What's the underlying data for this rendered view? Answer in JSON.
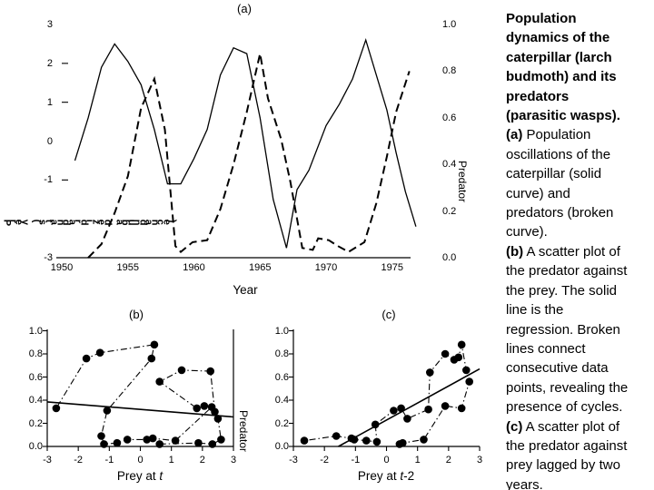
{
  "caption": {
    "lines": [
      {
        "b": "Population"
      },
      {
        "b": "dynamics of the"
      },
      {
        "b": "caterpillar (larch"
      },
      {
        "b": "budmoth) and its"
      },
      {
        "b": "predators"
      },
      {
        "b": "(parasitic wasps)."
      },
      {
        "b": "(a)",
        "t": " Population"
      },
      {
        "t": "oscillations of the"
      },
      {
        "t": "caterpillar (solid"
      },
      {
        "t": "curve) and"
      },
      {
        "t": "predators (broken"
      },
      {
        "t": "curve)."
      },
      {
        "b": "(b)",
        "t": " A scatter plot of"
      },
      {
        "t": "the predator against"
      },
      {
        "t": "the prey. The solid"
      },
      {
        "t": "line is the"
      },
      {
        "t": "regression. Broken"
      },
      {
        "t": "lines connect"
      },
      {
        "t": "consecutive data"
      },
      {
        "t": "points, revealing the"
      },
      {
        "t": "presence of cycles."
      },
      {
        "b": "(c)",
        "t": " A scatter plot of"
      },
      {
        "t": "the predator against"
      },
      {
        "t": "prey lagged by two"
      },
      {
        "t": "years."
      }
    ]
  },
  "chart_data": [
    {
      "id": "a",
      "type": "line",
      "title": "(a)",
      "xlabel": "Year",
      "right_axis_label": "Predator",
      "left_axis_label": "Prey (standardized abundance)",
      "x_ticks": {
        "values": [
          1950,
          1955,
          1960,
          1965,
          1970,
          1975
        ],
        "labels": [
          "1950",
          "1955",
          "1960",
          "1965",
          "1970",
          "1975"
        ]
      },
      "left_ticks": {
        "values": [
          3,
          2,
          1,
          0,
          -1,
          -3
        ],
        "labels": [
          "3",
          "2",
          "1",
          "0",
          "-1",
          "-3"
        ],
        "dash_values": [
          2,
          1,
          -1
        ]
      },
      "right_ticks": {
        "values": [
          1.0,
          0.8,
          0.6,
          0.4,
          0.2,
          0.0
        ],
        "labels": [
          "1.0",
          "0.8",
          "0.6",
          "0.4",
          "0.2",
          "0.0"
        ]
      },
      "xlim": [
        1949.6,
        1977.4
      ],
      "ylim_left": [
        -3,
        3
      ],
      "ylim_right": [
        0,
        1
      ],
      "grid": false,
      "series": [
        {
          "name": "caterpillar-prey-solid-curve",
          "style": "solid",
          "points": [
            [
              1951,
              -0.5
            ],
            [
              1952,
              0.6
            ],
            [
              1953,
              1.9
            ],
            [
              1954,
              2.5
            ],
            [
              1955,
              2.05
            ],
            [
              1956,
              1.45
            ],
            [
              1957,
              0.3
            ],
            [
              1958,
              -1.1
            ],
            [
              1959,
              -1.1
            ],
            [
              1960,
              -0.45
            ],
            [
              1961,
              0.3
            ],
            [
              1962,
              1.7
            ],
            [
              1963,
              2.4
            ],
            [
              1964,
              2.25
            ],
            [
              1965,
              0.6
            ],
            [
              1966,
              -1.5
            ],
            [
              1967,
              -2.75
            ],
            [
              1967.8,
              -1.25
            ],
            [
              1968.7,
              -0.75
            ],
            [
              1970,
              0.4
            ],
            [
              1971,
              0.95
            ],
            [
              1972,
              1.6
            ],
            [
              1973,
              2.6
            ],
            [
              1973.8,
              1.7
            ],
            [
              1974.6,
              0.8
            ],
            [
              1975.3,
              -0.3
            ],
            [
              1976,
              -1.3
            ],
            [
              1976.8,
              -2.2
            ]
          ]
        },
        {
          "name": "predators-broken-curve",
          "style": "dashed",
          "points": [
            [
              1952,
              -3.0
            ],
            [
              1953,
              -2.65
            ],
            [
              1954,
              -1.85
            ],
            [
              1955,
              -0.9
            ],
            [
              1956,
              0.85
            ],
            [
              1957,
              1.6
            ],
            [
              1957.8,
              0.3
            ],
            [
              1958.6,
              -2.7
            ],
            [
              1959,
              -2.85
            ],
            [
              1959.9,
              -2.6
            ],
            [
              1961,
              -2.55
            ],
            [
              1962,
              -1.75
            ],
            [
              1963,
              -0.6
            ],
            [
              1964,
              0.75
            ],
            [
              1965,
              2.25
            ],
            [
              1965.6,
              1.1
            ],
            [
              1966.6,
              0.05
            ],
            [
              1967.3,
              -1.05
            ],
            [
              1968.2,
              -2.75
            ],
            [
              1969,
              -2.8
            ],
            [
              1969.4,
              -2.5
            ],
            [
              1970.2,
              -2.55
            ],
            [
              1970.9,
              -2.7
            ],
            [
              1971.7,
              -2.85
            ],
            [
              1972.9,
              -2.6
            ],
            [
              1973.8,
              -1.6
            ],
            [
              1974.6,
              -0.4
            ],
            [
              1975.3,
              0.75
            ],
            [
              1976.3,
              1.8
            ]
          ]
        }
      ]
    },
    {
      "id": "b",
      "type": "scatter",
      "title": "(b)",
      "xlabel_prefix": "Prey at ",
      "xlabel_var": "t",
      "xlabel_suffix": "",
      "right_axis_label": "Predator",
      "x_ticks": {
        "values": [
          -3,
          -2,
          -1,
          0,
          1,
          2,
          3
        ],
        "labels": [
          "-3",
          "-2",
          "-1",
          "0",
          "1",
          "2",
          "3"
        ]
      },
      "y_ticks": {
        "values": [
          1.0,
          0.8,
          0.6,
          0.4,
          0.2,
          0.0
        ],
        "labels": [
          "1.0",
          "0.8",
          "0.6",
          "0.4",
          "0.2",
          "0.0"
        ]
      },
      "xlim": [
        -3,
        3
      ],
      "ylim": [
        0,
        1
      ],
      "has_right_axis": true,
      "points": [
        [
          0.62,
          0.02
        ],
        [
          1.87,
          0.03
        ],
        [
          2.32,
          0.02
        ],
        [
          2.6,
          0.06
        ],
        [
          2.5,
          0.24
        ],
        [
          2.4,
          0.3
        ],
        [
          2.26,
          0.65
        ],
        [
          1.33,
          0.66
        ],
        [
          0.62,
          0.56
        ],
        [
          1.82,
          0.33
        ],
        [
          2.06,
          0.35
        ],
        [
          2.3,
          0.34
        ],
        [
          1.13,
          0.05
        ],
        [
          0.4,
          0.07
        ],
        [
          0.21,
          0.06
        ],
        [
          -0.42,
          0.06
        ],
        [
          -0.75,
          0.03
        ],
        [
          -1.17,
          0.02
        ],
        [
          -1.26,
          0.09
        ],
        [
          -1.07,
          0.31
        ],
        [
          0.36,
          0.76
        ],
        [
          0.45,
          0.88
        ],
        [
          -1.3,
          0.81
        ],
        [
          -1.74,
          0.76
        ],
        [
          -2.71,
          0.33
        ]
      ],
      "regression": [
        [
          -3,
          0.385
        ],
        [
          3,
          0.255
        ]
      ]
    },
    {
      "id": "c",
      "type": "scatter",
      "title": "(c)",
      "xlabel_prefix": "Prey at ",
      "xlabel_var": "t",
      "xlabel_suffix": "-2",
      "x_ticks": {
        "values": [
          -3,
          -2,
          -1,
          0,
          1,
          2,
          3
        ],
        "labels": [
          "-3",
          "-2",
          "-1",
          "0",
          "1",
          "2",
          "3"
        ]
      },
      "y_ticks": {
        "values": [
          1.0,
          0.8,
          0.6,
          0.4,
          0.2,
          0.0
        ],
        "labels": [
          "1.0",
          "0.8",
          "0.6",
          "0.4",
          "0.2",
          "0.0"
        ]
      },
      "xlim": [
        -3,
        3
      ],
      "ylim": [
        0,
        1
      ],
      "has_right_axis": false,
      "points": [
        [
          0.42,
          0.02
        ],
        [
          0.52,
          0.03
        ],
        [
          1.2,
          0.06
        ],
        [
          1.89,
          0.35
        ],
        [
          2.42,
          0.33
        ],
        [
          2.67,
          0.56
        ],
        [
          2.57,
          0.66
        ],
        [
          2.42,
          0.88
        ],
        [
          2.32,
          0.77
        ],
        [
          2.18,
          0.75
        ],
        [
          1.89,
          0.8
        ],
        [
          1.4,
          0.64
        ],
        [
          1.35,
          0.32
        ],
        [
          0.67,
          0.24
        ],
        [
          0.47,
          0.33
        ],
        [
          0.23,
          0.31
        ],
        [
          -0.36,
          0.19
        ],
        [
          -0.31,
          0.04
        ],
        [
          -0.65,
          0.05
        ],
        [
          -1.04,
          0.06
        ],
        [
          -1.13,
          0.07
        ],
        [
          -1.62,
          0.09
        ],
        [
          -2.65,
          0.05
        ]
      ],
      "regression": [
        [
          -1.55,
          0.0
        ],
        [
          3,
          0.67
        ]
      ]
    }
  ]
}
